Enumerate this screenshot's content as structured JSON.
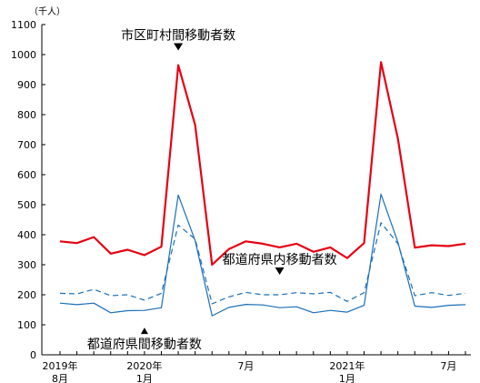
{
  "chart_data": {
    "type": "line",
    "unit_label": "（千人）",
    "ylim": [
      0,
      1100
    ],
    "yticks": [
      0,
      100,
      200,
      300,
      400,
      500,
      600,
      700,
      800,
      900,
      1000,
      1100
    ],
    "x": [
      "2019-08",
      "2019-09",
      "2019-10",
      "2019-11",
      "2019-12",
      "2020-01",
      "2020-02",
      "2020-03",
      "2020-04",
      "2020-05",
      "2020-06",
      "2020-07",
      "2020-08",
      "2020-09",
      "2020-10",
      "2020-11",
      "2020-12",
      "2021-01",
      "2021-02",
      "2021-03",
      "2021-04",
      "2021-05",
      "2021-06",
      "2021-07",
      "2021-08"
    ],
    "x_tick_labels": [
      {
        "index": 0,
        "line1": "2019年",
        "line2": "8月"
      },
      {
        "index": 5,
        "line1": "2020年",
        "line2": "1月"
      },
      {
        "index": 11,
        "line1": "7月",
        "line2": ""
      },
      {
        "index": 17,
        "line1": "2021年",
        "line2": "1月"
      },
      {
        "index": 23,
        "line1": "7月",
        "line2": ""
      }
    ],
    "series": [
      {
        "name": "市区町村間移動者数",
        "color": "#e60012",
        "style": "solid",
        "values": [
          378,
          372,
          392,
          337,
          350,
          332,
          360,
          965,
          765,
          300,
          352,
          378,
          370,
          358,
          370,
          343,
          358,
          322,
          372,
          975,
          720,
          357,
          365,
          362,
          370
        ]
      },
      {
        "name": "都道府県間移動者数",
        "color": "#1a6fb8",
        "style": "solid",
        "values": [
          172,
          167,
          172,
          140,
          147,
          148,
          157,
          532,
          380,
          130,
          158,
          168,
          166,
          157,
          160,
          140,
          148,
          142,
          165,
          535,
          375,
          162,
          158,
          165,
          167
        ]
      },
      {
        "name": "都道府県内移動者数",
        "color": "#1a6fb8",
        "style": "dashed",
        "values": [
          205,
          203,
          218,
          197,
          200,
          182,
          205,
          432,
          385,
          170,
          193,
          208,
          200,
          200,
          207,
          203,
          208,
          178,
          207,
          440,
          370,
          197,
          207,
          198,
          205
        ]
      }
    ],
    "annotations": [
      {
        "text": "市区町村間移動者数",
        "series": 0,
        "point": 7,
        "arrow": "down"
      },
      {
        "text": "都道府県内移動者数",
        "series": 2,
        "point": 13,
        "arrow": "down"
      },
      {
        "text": "都道府県間移動者数",
        "series": 1,
        "point": 5,
        "arrow": "up"
      }
    ],
    "grid": false
  }
}
